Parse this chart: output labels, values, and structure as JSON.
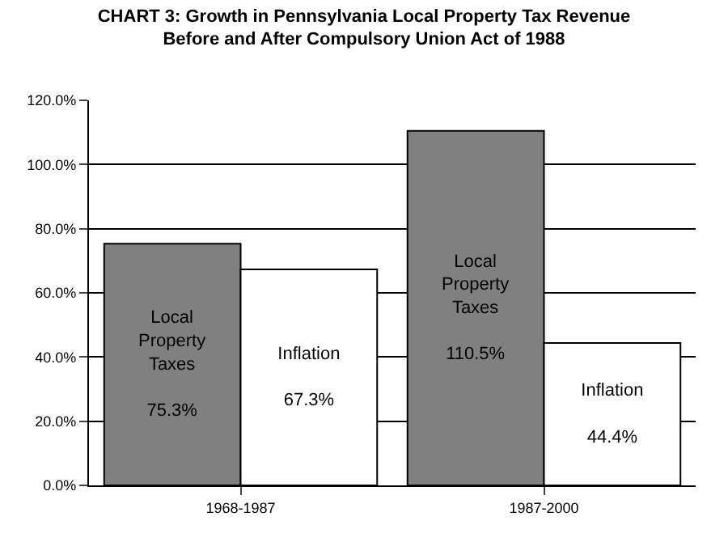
{
  "chart_data": {
    "type": "bar",
    "title": "CHART 3: Growth in Pennsylvania Local Property Tax Revenue\nBefore and After Compulsory Union Act of 1988",
    "categories": [
      "1968-1987",
      "1987-2000"
    ],
    "series": [
      {
        "name": "Local Property Taxes",
        "color": "#808080",
        "values": [
          75.3,
          110.5
        ],
        "value_labels": [
          "75.3%",
          "110.5%"
        ]
      },
      {
        "name": "Inflation",
        "color": "#ffffff",
        "values": [
          67.3,
          44.4
        ],
        "value_labels": [
          "67.3%",
          "44.4%"
        ]
      }
    ],
    "ylim": [
      0,
      120
    ],
    "yticks": [
      {
        "value": 0,
        "label": "0.0%"
      },
      {
        "value": 20,
        "label": "20.0%"
      },
      {
        "value": 40,
        "label": "40.0%"
      },
      {
        "value": 60,
        "label": "60.0%"
      },
      {
        "value": 80,
        "label": "80.0%"
      },
      {
        "value": 100,
        "label": "100.0%"
      },
      {
        "value": 120,
        "label": "120.0%"
      }
    ],
    "grid": "y",
    "legend": false
  }
}
